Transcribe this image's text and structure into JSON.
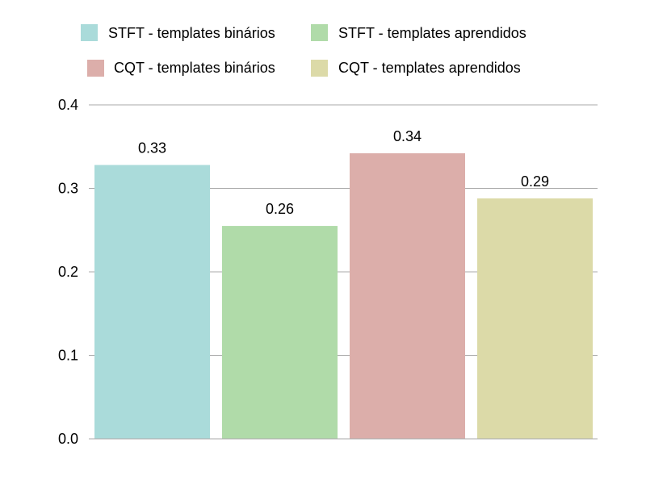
{
  "chart_data": {
    "type": "bar",
    "title": "",
    "xlabel": "",
    "ylabel": "",
    "ylim": [
      0,
      0.4
    ],
    "yticks": [
      "0.0",
      "0.1",
      "0.2",
      "0.3",
      "0.4"
    ],
    "grid": "horizontal",
    "legend_position": "top",
    "categories": [
      "STFT - templates binários",
      "STFT - templates aprendidos",
      "CQT - templates binários",
      "CQT - templates aprendidos"
    ],
    "values": [
      0.328,
      0.255,
      0.342,
      0.288
    ],
    "value_labels": [
      "0.33",
      "0.26",
      "0.34",
      "0.29"
    ],
    "colors": [
      "#aadbda",
      "#b0dba9",
      "#dcaeaa",
      "#dcdaa8"
    ]
  }
}
